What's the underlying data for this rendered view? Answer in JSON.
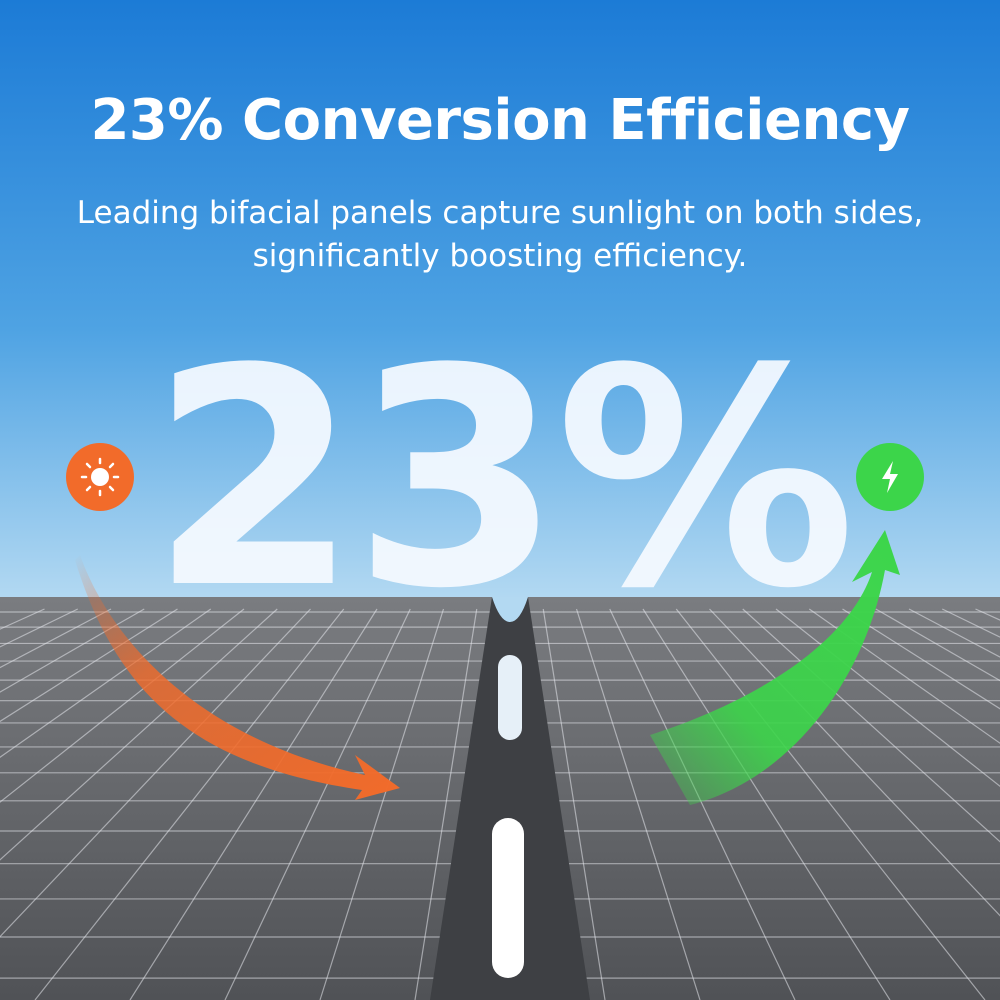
{
  "header": {
    "title": "23% Conversion Efficiency",
    "subtitle_line1": "Leading bifacial panels capture sunlight on both sides,",
    "subtitle_line2": "significantly boosting efficiency."
  },
  "hero": {
    "value": "23%"
  },
  "icons": {
    "left": "sun-icon",
    "right": "lightning-bolt-icon"
  },
  "colors": {
    "sky_top": "#1f7fd8",
    "sky_bottom": "#a9d4f0",
    "panel": "#5a5c60",
    "sun_accent": "#f26b2a",
    "energy_accent": "#3cd54a"
  }
}
